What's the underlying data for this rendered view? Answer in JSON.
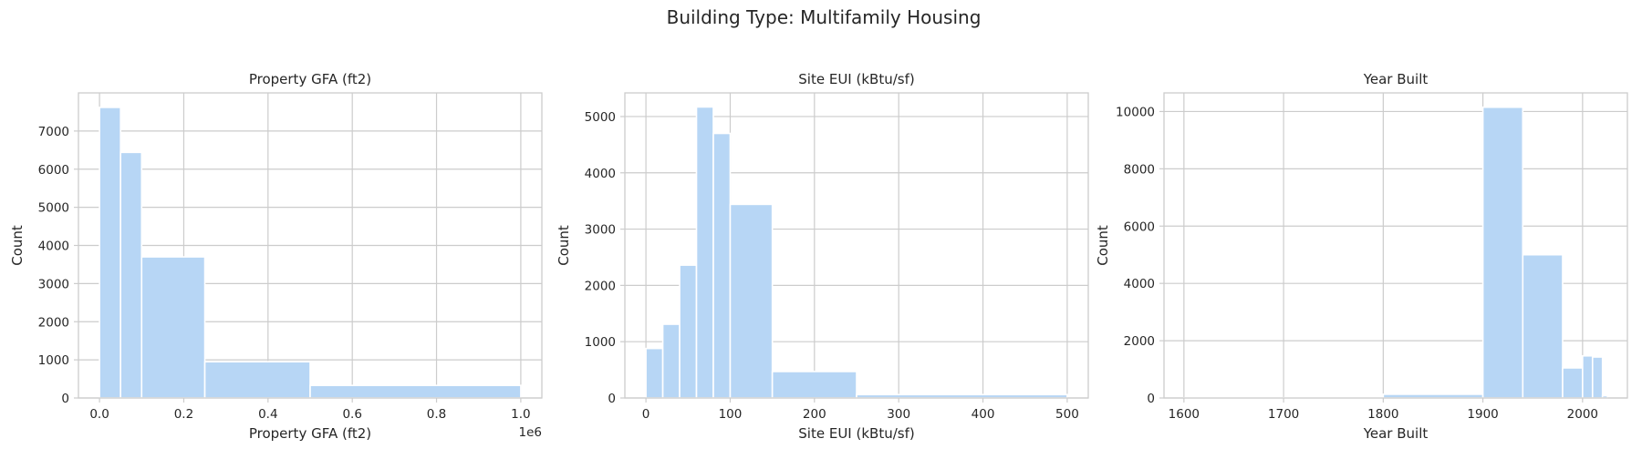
{
  "figure": {
    "title": "Building Type: Multifamily Housing"
  },
  "chart_data": [
    {
      "type": "bar",
      "histogram": true,
      "title": "Property GFA (ft2)",
      "xlabel": "Property GFA (ft2)",
      "ylabel": "Count",
      "x_offset_label": "1e6",
      "bins": [
        {
          "x0": 0,
          "x1": 50000,
          "count": 7620
        },
        {
          "x0": 50000,
          "x1": 100000,
          "count": 6440
        },
        {
          "x0": 100000,
          "x1": 250000,
          "count": 3700
        },
        {
          "x0": 250000,
          "x1": 500000,
          "count": 950
        },
        {
          "x0": 500000,
          "x1": 1000000,
          "count": 330
        }
      ],
      "xlim": [
        -50000,
        1050000
      ],
      "ylim": [
        0,
        8000
      ],
      "xticks": [
        {
          "value": 0,
          "label": "0.0"
        },
        {
          "value": 200000,
          "label": "0.2"
        },
        {
          "value": 400000,
          "label": "0.4"
        },
        {
          "value": 600000,
          "label": "0.6"
        },
        {
          "value": 800000,
          "label": "0.8"
        },
        {
          "value": 1000000,
          "label": "1.0"
        }
      ],
      "yticks": [
        {
          "value": 0,
          "label": "0"
        },
        {
          "value": 1000,
          "label": "1000"
        },
        {
          "value": 2000,
          "label": "2000"
        },
        {
          "value": 3000,
          "label": "3000"
        },
        {
          "value": 4000,
          "label": "4000"
        },
        {
          "value": 5000,
          "label": "5000"
        },
        {
          "value": 6000,
          "label": "6000"
        },
        {
          "value": 7000,
          "label": "7000"
        }
      ],
      "grid": true
    },
    {
      "type": "bar",
      "histogram": true,
      "title": "Site EUI (kBtu/sf)",
      "xlabel": "Site EUI (kBtu/sf)",
      "ylabel": "Count",
      "x_offset_label": "",
      "bins": [
        {
          "x0": 0,
          "x1": 20,
          "count": 880
        },
        {
          "x0": 20,
          "x1": 40,
          "count": 1310
        },
        {
          "x0": 40,
          "x1": 60,
          "count": 2360
        },
        {
          "x0": 60,
          "x1": 80,
          "count": 5170
        },
        {
          "x0": 80,
          "x1": 100,
          "count": 4700
        },
        {
          "x0": 100,
          "x1": 150,
          "count": 3440
        },
        {
          "x0": 150,
          "x1": 250,
          "count": 470
        },
        {
          "x0": 250,
          "x1": 500,
          "count": 60
        }
      ],
      "xlim": [
        -25,
        525
      ],
      "ylim": [
        0,
        5420
      ],
      "xticks": [
        {
          "value": 0,
          "label": "0"
        },
        {
          "value": 100,
          "label": "100"
        },
        {
          "value": 200,
          "label": "200"
        },
        {
          "value": 300,
          "label": "300"
        },
        {
          "value": 400,
          "label": "400"
        },
        {
          "value": 500,
          "label": "500"
        }
      ],
      "yticks": [
        {
          "value": 0,
          "label": "0"
        },
        {
          "value": 1000,
          "label": "1000"
        },
        {
          "value": 2000,
          "label": "2000"
        },
        {
          "value": 3000,
          "label": "3000"
        },
        {
          "value": 4000,
          "label": "4000"
        },
        {
          "value": 5000,
          "label": "5000"
        }
      ],
      "grid": true
    },
    {
      "type": "bar",
      "histogram": true,
      "title": "Year Built",
      "xlabel": "Year Built",
      "ylabel": "Count",
      "x_offset_label": "",
      "bins": [
        {
          "x0": 1600,
          "x1": 1800,
          "count": 10
        },
        {
          "x0": 1800,
          "x1": 1900,
          "count": 130
        },
        {
          "x0": 1900,
          "x1": 1940,
          "count": 10150
        },
        {
          "x0": 1940,
          "x1": 1980,
          "count": 5000
        },
        {
          "x0": 1980,
          "x1": 2000,
          "count": 1050
        },
        {
          "x0": 2000,
          "x1": 2010,
          "count": 1470
        },
        {
          "x0": 2010,
          "x1": 2020,
          "count": 1430
        },
        {
          "x0": 2020,
          "x1": 2025,
          "count": 80
        }
      ],
      "xlim": [
        1580,
        2045
      ],
      "ylim": [
        0,
        10650
      ],
      "xticks": [
        {
          "value": 1600,
          "label": "1600"
        },
        {
          "value": 1700,
          "label": "1700"
        },
        {
          "value": 1800,
          "label": "1800"
        },
        {
          "value": 1900,
          "label": "1900"
        },
        {
          "value": 2000,
          "label": "2000"
        }
      ],
      "yticks": [
        {
          "value": 0,
          "label": "0"
        },
        {
          "value": 2000,
          "label": "2000"
        },
        {
          "value": 4000,
          "label": "4000"
        },
        {
          "value": 6000,
          "label": "6000"
        },
        {
          "value": 8000,
          "label": "8000"
        },
        {
          "value": 10000,
          "label": "10000"
        }
      ],
      "grid": true
    }
  ]
}
